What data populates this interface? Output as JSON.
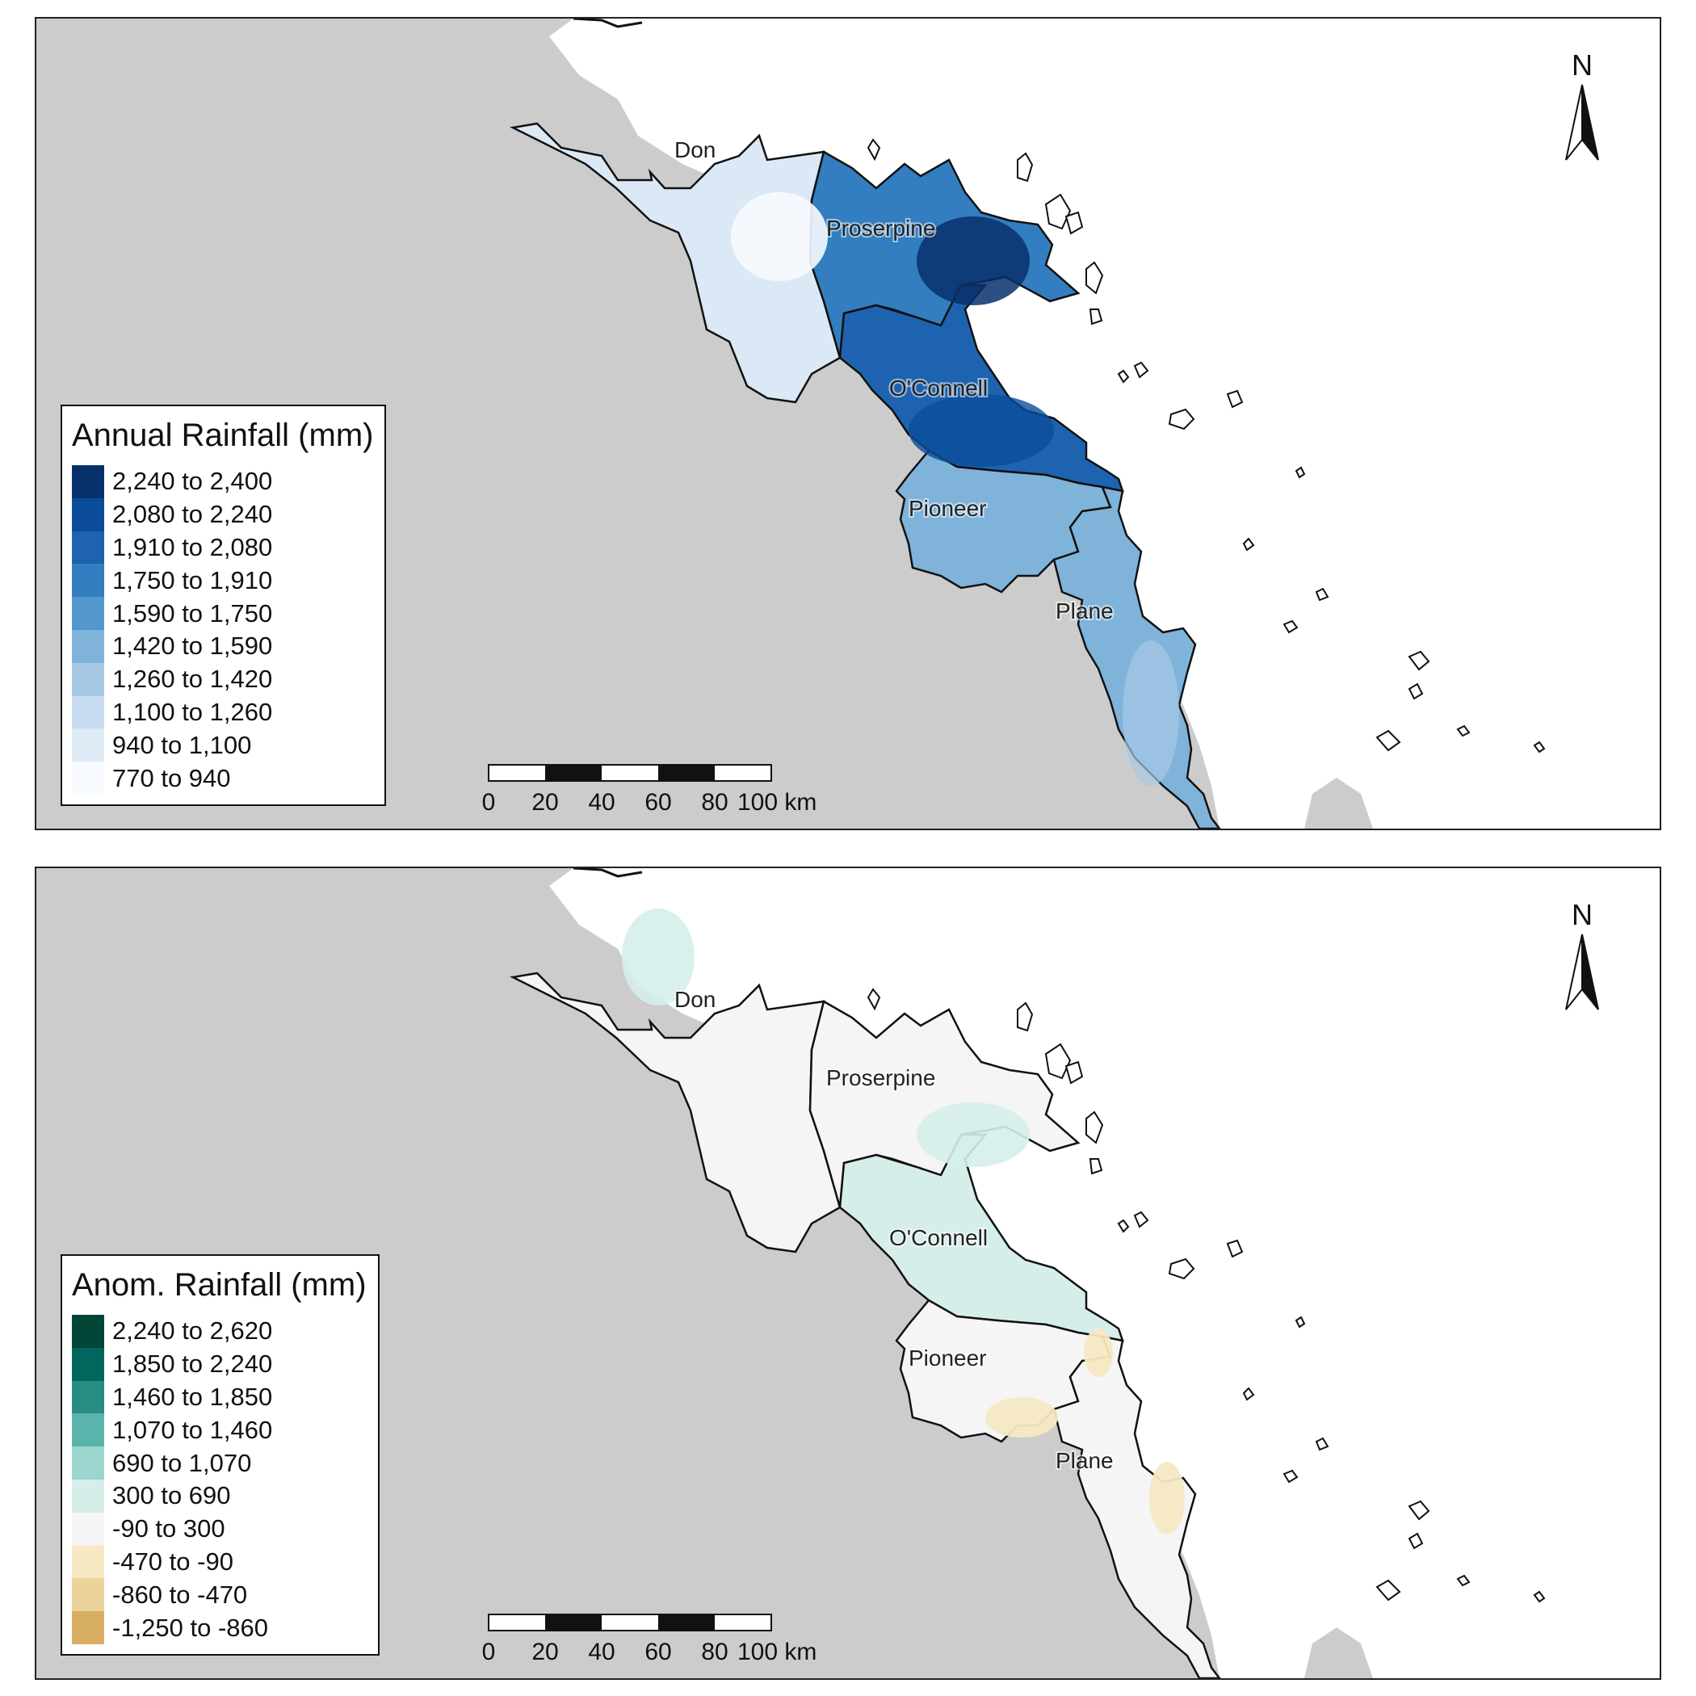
{
  "panels": [
    {
      "id": "annual",
      "legend": {
        "title": "Annual Rainfall (mm)",
        "entries": [
          {
            "label": "2,240 to 2,400",
            "color": "#08306b"
          },
          {
            "label": "2,080 to 2,240",
            "color": "#0b4c9a"
          },
          {
            "label": "1,910 to 2,080",
            "color": "#1d63b0"
          },
          {
            "label": "1,750 to 1,910",
            "color": "#327ec0"
          },
          {
            "label": "1,590 to 1,750",
            "color": "#5497cd"
          },
          {
            "label": "1,420 to 1,590",
            "color": "#7fb3da"
          },
          {
            "label": "1,260 to 1,420",
            "color": "#a6c9e6"
          },
          {
            "label": "1,100 to 1,260",
            "color": "#c6dbef"
          },
          {
            "label": "940 to 1,100",
            "color": "#deebf7"
          },
          {
            "label": "770 to 940",
            "color": "#f7fbff"
          }
        ]
      },
      "catchments": {
        "don": {
          "label": "Don",
          "color": "#dbe9f6"
        },
        "proserpine": {
          "label": "Proserpine",
          "color": "#327ec0"
        },
        "oconnell": {
          "label": "O'Connell",
          "color": "#1d63b0"
        },
        "pioneer": {
          "label": "Pioneer",
          "color": "#7fb3da"
        },
        "plane": {
          "label": "Plane",
          "color": "#7fb3da"
        }
      }
    },
    {
      "id": "anomaly",
      "legend": {
        "title": "Anom. Rainfall (mm)",
        "entries": [
          {
            "label": "2,240 to 2,620",
            "color": "#014636"
          },
          {
            "label": "1,850 to 2,240",
            "color": "#01665e"
          },
          {
            "label": "1,460 to 1,850",
            "color": "#268c84"
          },
          {
            "label": "1,070 to 1,460",
            "color": "#5ab4ac"
          },
          {
            "label": "690 to 1,070",
            "color": "#9ad6cd"
          },
          {
            "label": "300 to 690",
            "color": "#d5eeea"
          },
          {
            "label": "-90 to 300",
            "color": "#f5f5f5"
          },
          {
            "label": "-470 to -90",
            "color": "#f6e8c3"
          },
          {
            "label": "-860 to -470",
            "color": "#ecd39c"
          },
          {
            "label": "-1,250 to -860",
            "color": "#d8ae62"
          }
        ]
      },
      "catchments": {
        "don": {
          "label": "Don",
          "color": "#f5f5f5"
        },
        "proserpine": {
          "label": "Proserpine",
          "color": "#f5f5f5"
        },
        "oconnell": {
          "label": "O'Connell",
          "color": "#d5eeea"
        },
        "pioneer": {
          "label": "Pioneer",
          "color": "#f5f5f5"
        },
        "plane": {
          "label": "Plane",
          "color": "#f5f5f5"
        }
      }
    }
  ],
  "colors": {
    "land": "#cccccc",
    "sea": "#ffffff",
    "boundary": "#111111"
  },
  "scale_bar": {
    "ticks": [
      "0",
      "20",
      "40",
      "60",
      "80",
      "100 km"
    ]
  },
  "north_arrow": {
    "label": "N"
  }
}
